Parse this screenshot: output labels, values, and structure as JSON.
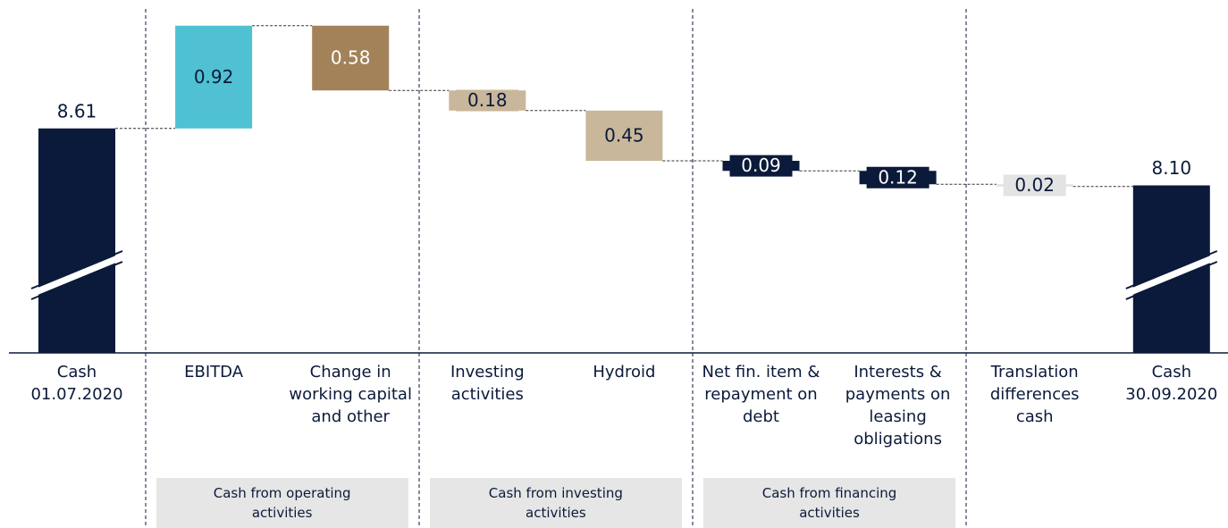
{
  "chart_data": {
    "type": "waterfall",
    "categories": [
      "Cash 01.07.2020",
      "EBITDA",
      "Change in working capital and other",
      "Investing activities",
      "Hydroid",
      "Net fin. item & repayment on debt",
      "Interests & payments on leasing obligations",
      "Translation differences cash",
      "Cash 30.09.2020"
    ],
    "measure": [
      "absolute",
      "relative",
      "relative",
      "relative",
      "relative",
      "relative",
      "relative",
      "relative",
      "absolute"
    ],
    "values": [
      8.61,
      0.92,
      -0.58,
      -0.18,
      -0.45,
      -0.09,
      -0.12,
      -0.02,
      8.1
    ],
    "value_labels": [
      "8.61",
      "0.92",
      "0.58",
      "0.18",
      "0.45",
      "0.09",
      "0.12",
      "0.02",
      "8.10"
    ],
    "colors": [
      "#0b1a3a",
      "#4fc1d3",
      "#a3825a",
      "#c9b79b",
      "#c9b79b",
      "#0b1a3a",
      "#0b1a3a",
      "#e3e3e3",
      "#0b1a3a"
    ],
    "ylim": [
      6.6,
      9.6
    ],
    "groups": [
      {
        "label": "Cash from operating activities",
        "categories": [
          "EBITDA",
          "Change in working capital and other"
        ]
      },
      {
        "label": "Cash from investing activities",
        "categories": [
          "Investing activities",
          "Hydroid"
        ]
      },
      {
        "label": "Cash from financing activities",
        "categories": [
          "Net fin. item & repayment on debt",
          "Interests & payments on leasing obligations"
        ]
      }
    ]
  }
}
